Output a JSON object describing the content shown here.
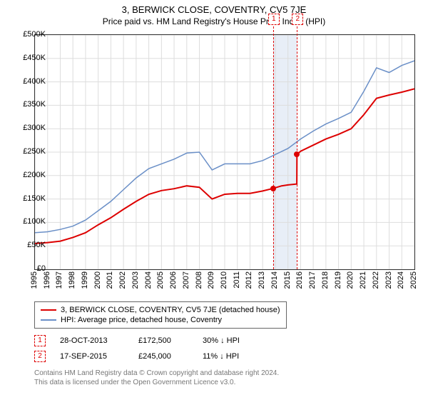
{
  "title_line1": "3, BERWICK CLOSE, COVENTRY, CV5 7JE",
  "title_line2": "Price paid vs. HM Land Registry's House Price Index (HPI)",
  "chart": {
    "type": "line",
    "y_min": 0,
    "y_max": 500000,
    "y_tick_step": 50000,
    "y_tick_labels": [
      "£0",
      "£50K",
      "£100K",
      "£150K",
      "£200K",
      "£250K",
      "£300K",
      "£350K",
      "£400K",
      "£450K",
      "£500K"
    ],
    "x_min": 1995,
    "x_max": 2025,
    "x_ticks": [
      1995,
      1996,
      1997,
      1998,
      1999,
      2000,
      2001,
      2002,
      2003,
      2004,
      2005,
      2006,
      2007,
      2008,
      2009,
      2010,
      2011,
      2012,
      2013,
      2014,
      2015,
      2016,
      2017,
      2018,
      2019,
      2020,
      2021,
      2022,
      2023,
      2024,
      2025
    ],
    "background_color": "#ffffff",
    "grid_color": "#dddddd",
    "highlight_band": {
      "x_start": 2013.82,
      "x_end": 2015.71,
      "color": "#e8eef7"
    },
    "markers": [
      {
        "label": "1",
        "x": 2013.82
      },
      {
        "label": "2",
        "x": 2015.71
      }
    ],
    "series": [
      {
        "name": "subject",
        "label": "3, BERWICK CLOSE, COVENTRY, CV5 7JE (detached house)",
        "color": "#dd0000",
        "line_width": 2,
        "points": [
          [
            1995,
            55000
          ],
          [
            1996,
            57000
          ],
          [
            1997,
            60000
          ],
          [
            1998,
            68000
          ],
          [
            1999,
            78000
          ],
          [
            2000,
            95000
          ],
          [
            2001,
            110000
          ],
          [
            2002,
            128000
          ],
          [
            2003,
            145000
          ],
          [
            2004,
            160000
          ],
          [
            2005,
            168000
          ],
          [
            2006,
            172000
          ],
          [
            2007,
            178000
          ],
          [
            2008,
            175000
          ],
          [
            2009,
            150000
          ],
          [
            2010,
            160000
          ],
          [
            2011,
            162000
          ],
          [
            2012,
            162000
          ],
          [
            2013,
            167000
          ],
          [
            2013.82,
            172500
          ],
          [
            2014.5,
            178000
          ],
          [
            2015,
            180000
          ],
          [
            2015.7,
            182000
          ],
          [
            2015.71,
            245000
          ],
          [
            2016,
            252000
          ],
          [
            2017,
            265000
          ],
          [
            2018,
            278000
          ],
          [
            2019,
            288000
          ],
          [
            2020,
            300000
          ],
          [
            2021,
            330000
          ],
          [
            2022,
            365000
          ],
          [
            2023,
            372000
          ],
          [
            2024,
            378000
          ],
          [
            2025,
            385000
          ]
        ],
        "sale_points": [
          {
            "x": 2013.82,
            "y": 172500
          },
          {
            "x": 2015.71,
            "y": 245000
          }
        ]
      },
      {
        "name": "hpi",
        "label": "HPI: Average price, detached house, Coventry",
        "color": "#6a8fc7",
        "line_width": 1.5,
        "points": [
          [
            1995,
            78000
          ],
          [
            1996,
            80000
          ],
          [
            1997,
            85000
          ],
          [
            1998,
            92000
          ],
          [
            1999,
            105000
          ],
          [
            2000,
            125000
          ],
          [
            2001,
            145000
          ],
          [
            2002,
            170000
          ],
          [
            2003,
            195000
          ],
          [
            2004,
            215000
          ],
          [
            2005,
            225000
          ],
          [
            2006,
            235000
          ],
          [
            2007,
            248000
          ],
          [
            2008,
            250000
          ],
          [
            2009,
            212000
          ],
          [
            2010,
            225000
          ],
          [
            2011,
            225000
          ],
          [
            2012,
            225000
          ],
          [
            2013,
            232000
          ],
          [
            2014,
            245000
          ],
          [
            2015,
            258000
          ],
          [
            2016,
            278000
          ],
          [
            2017,
            295000
          ],
          [
            2018,
            310000
          ],
          [
            2019,
            322000
          ],
          [
            2020,
            335000
          ],
          [
            2021,
            380000
          ],
          [
            2022,
            430000
          ],
          [
            2023,
            420000
          ],
          [
            2024,
            435000
          ],
          [
            2025,
            445000
          ]
        ]
      }
    ]
  },
  "legend": {
    "items": [
      {
        "color": "#dd0000",
        "width": 2,
        "label": "3, BERWICK CLOSE, COVENTRY, CV5 7JE (detached house)"
      },
      {
        "color": "#6a8fc7",
        "width": 1.5,
        "label": "HPI: Average price, detached house, Coventry"
      }
    ]
  },
  "sales": [
    {
      "marker": "1",
      "date": "28-OCT-2013",
      "price": "£172,500",
      "diff": "30% ↓ HPI"
    },
    {
      "marker": "2",
      "date": "17-SEP-2015",
      "price": "£245,000",
      "diff": "11% ↓ HPI"
    }
  ],
  "footnote_line1": "Contains HM Land Registry data © Crown copyright and database right 2024.",
  "footnote_line2": "This data is licensed under the Open Government Licence v3.0."
}
